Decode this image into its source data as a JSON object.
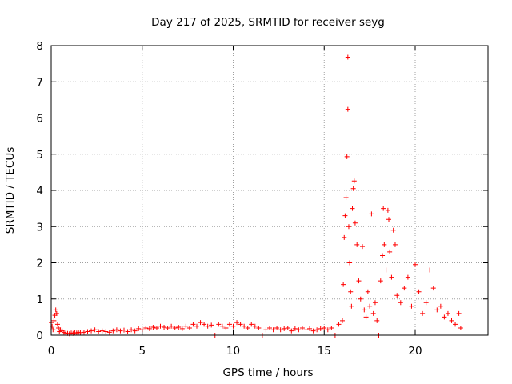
{
  "chart_data": {
    "type": "scatter",
    "title": "Day 217 of 2025, SRMTID for receiver seyg",
    "xlabel": "GPS time / hours",
    "ylabel": "SRMTID / TECUs",
    "xlim": [
      0,
      24
    ],
    "ylim": [
      0,
      8
    ],
    "xticks": [
      0,
      5,
      10,
      15,
      20
    ],
    "xtick_labels": [
      "0",
      "5",
      "10",
      "15",
      "20"
    ],
    "yticks": [
      0,
      1,
      2,
      3,
      4,
      5,
      6,
      7,
      8
    ],
    "ytick_labels": [
      "0",
      "1",
      "2",
      "3",
      "4",
      "5",
      "6",
      "7",
      "8"
    ],
    "grid": true,
    "marker": "+",
    "color": "#ff0000",
    "series": [
      {
        "name": "SRMTID",
        "points": [
          [
            0.0,
            0.35
          ],
          [
            0.05,
            0.25
          ],
          [
            0.1,
            0.15
          ],
          [
            0.15,
            0.4
          ],
          [
            0.2,
            0.55
          ],
          [
            0.25,
            0.7
          ],
          [
            0.3,
            0.6
          ],
          [
            0.35,
            0.3
          ],
          [
            0.4,
            0.2
          ],
          [
            0.45,
            0.1
          ],
          [
            0.5,
            0.15
          ],
          [
            0.6,
            0.12
          ],
          [
            0.7,
            0.08
          ],
          [
            0.8,
            0.06
          ],
          [
            0.9,
            0.05
          ],
          [
            1.0,
            0.04
          ],
          [
            1.1,
            0.06
          ],
          [
            1.2,
            0.05
          ],
          [
            1.3,
            0.07
          ],
          [
            1.4,
            0.06
          ],
          [
            1.5,
            0.08
          ],
          [
            1.6,
            0.07
          ],
          [
            1.8,
            0.08
          ],
          [
            2.0,
            0.1
          ],
          [
            2.2,
            0.12
          ],
          [
            2.4,
            0.15
          ],
          [
            2.6,
            0.1
          ],
          [
            2.8,
            0.12
          ],
          [
            3.0,
            0.1
          ],
          [
            3.2,
            0.08
          ],
          [
            3.4,
            0.12
          ],
          [
            3.6,
            0.15
          ],
          [
            3.8,
            0.12
          ],
          [
            4.0,
            0.14
          ],
          [
            4.2,
            0.1
          ],
          [
            4.4,
            0.15
          ],
          [
            4.6,
            0.12
          ],
          [
            4.8,
            0.18
          ],
          [
            5.0,
            0.15
          ],
          [
            5.2,
            0.2
          ],
          [
            5.4,
            0.18
          ],
          [
            5.6,
            0.22
          ],
          [
            5.8,
            0.2
          ],
          [
            6.0,
            0.25
          ],
          [
            6.2,
            0.22
          ],
          [
            6.4,
            0.2
          ],
          [
            6.6,
            0.25
          ],
          [
            6.8,
            0.2
          ],
          [
            7.0,
            0.22
          ],
          [
            7.2,
            0.18
          ],
          [
            7.4,
            0.25
          ],
          [
            7.6,
            0.2
          ],
          [
            7.8,
            0.3
          ],
          [
            8.0,
            0.25
          ],
          [
            8.2,
            0.35
          ],
          [
            8.4,
            0.3
          ],
          [
            8.6,
            0.25
          ],
          [
            8.8,
            0.28
          ],
          [
            9.0,
            0.0
          ],
          [
            9.2,
            0.3
          ],
          [
            9.4,
            0.25
          ],
          [
            9.6,
            0.2
          ],
          [
            9.8,
            0.3
          ],
          [
            10.0,
            0.25
          ],
          [
            10.2,
            0.35
          ],
          [
            10.4,
            0.3
          ],
          [
            10.6,
            0.25
          ],
          [
            10.8,
            0.2
          ],
          [
            11.0,
            0.3
          ],
          [
            11.2,
            0.25
          ],
          [
            11.4,
            0.2
          ],
          [
            11.6,
            0.0
          ],
          [
            11.8,
            0.15
          ],
          [
            12.0,
            0.2
          ],
          [
            12.2,
            0.15
          ],
          [
            12.4,
            0.2
          ],
          [
            12.6,
            0.15
          ],
          [
            12.8,
            0.18
          ],
          [
            13.0,
            0.2
          ],
          [
            13.2,
            0.12
          ],
          [
            13.4,
            0.18
          ],
          [
            13.6,
            0.15
          ],
          [
            13.8,
            0.2
          ],
          [
            14.0,
            0.15
          ],
          [
            14.2,
            0.18
          ],
          [
            14.4,
            0.12
          ],
          [
            14.6,
            0.15
          ],
          [
            14.8,
            0.18
          ],
          [
            15.0,
            0.2
          ],
          [
            15.2,
            0.15
          ],
          [
            15.4,
            0.2
          ],
          [
            15.6,
            0.0
          ],
          [
            15.8,
            0.3
          ],
          [
            16.0,
            0.4
          ],
          [
            16.05,
            1.4
          ],
          [
            16.1,
            2.7
          ],
          [
            16.15,
            3.3
          ],
          [
            16.2,
            3.8
          ],
          [
            16.25,
            4.93
          ],
          [
            16.3,
            7.68
          ],
          [
            16.3,
            6.24
          ],
          [
            16.35,
            3.0
          ],
          [
            16.4,
            2.0
          ],
          [
            16.45,
            1.2
          ],
          [
            16.5,
            0.8
          ],
          [
            16.55,
            3.5
          ],
          [
            16.6,
            4.05
          ],
          [
            16.65,
            4.26
          ],
          [
            16.7,
            3.1
          ],
          [
            16.8,
            2.5
          ],
          [
            16.9,
            1.5
          ],
          [
            17.0,
            1.0
          ],
          [
            17.1,
            2.45
          ],
          [
            17.2,
            0.7
          ],
          [
            17.3,
            0.5
          ],
          [
            17.4,
            1.2
          ],
          [
            17.5,
            0.8
          ],
          [
            17.6,
            3.35
          ],
          [
            17.7,
            0.6
          ],
          [
            17.8,
            0.9
          ],
          [
            17.9,
            0.4
          ],
          [
            18.0,
            0.0
          ],
          [
            18.1,
            1.5
          ],
          [
            18.2,
            2.2
          ],
          [
            18.25,
            3.5
          ],
          [
            18.3,
            2.5
          ],
          [
            18.4,
            1.8
          ],
          [
            18.5,
            3.45
          ],
          [
            18.55,
            3.2
          ],
          [
            18.6,
            2.3
          ],
          [
            18.7,
            1.6
          ],
          [
            18.8,
            2.9
          ],
          [
            18.9,
            2.5
          ],
          [
            19.0,
            1.1
          ],
          [
            19.2,
            0.9
          ],
          [
            19.4,
            1.3
          ],
          [
            19.6,
            1.6
          ],
          [
            19.8,
            0.8
          ],
          [
            20.0,
            1.95
          ],
          [
            20.2,
            1.2
          ],
          [
            20.4,
            0.6
          ],
          [
            20.6,
            0.9
          ],
          [
            20.8,
            1.8
          ],
          [
            21.0,
            1.3
          ],
          [
            21.2,
            0.7
          ],
          [
            21.4,
            0.8
          ],
          [
            21.6,
            0.5
          ],
          [
            21.8,
            0.6
          ],
          [
            22.0,
            0.4
          ],
          [
            22.2,
            0.3
          ],
          [
            22.4,
            0.6
          ],
          [
            22.5,
            0.2
          ]
        ]
      }
    ]
  }
}
